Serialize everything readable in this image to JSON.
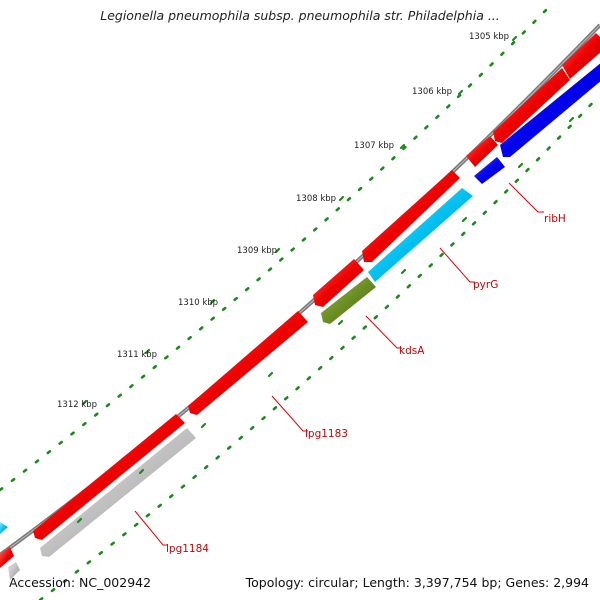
{
  "title": "Legionella pneumophila subsp. pneumophila str. Philadelphia ...",
  "accession": "Accession: NC_002942",
  "topology": "Topology: circular; Length: 3,397,754 bp; Genes: 2,994",
  "ticks": [
    "1305 kbp",
    "1306 kbp",
    "1307 kbp",
    "1308 kbp",
    "1309 kbp",
    "1310 kbp",
    "1311 kbp",
    "1312 kbp"
  ],
  "genes": [
    {
      "name": "ribH",
      "color": "#0000ee"
    },
    {
      "name": "pyrG",
      "color": "#00c0f0"
    },
    {
      "name": "kdsA",
      "color": "#6b8e23"
    },
    {
      "name": "lpg1183",
      "color": "#cc0000"
    },
    {
      "name": "lpg1184",
      "color": "#b8b8b8"
    }
  ],
  "colors": {
    "backbone": "#7a7a7a",
    "forward_strand": "#ee0000",
    "tick_dots": "#1a8a1a",
    "label_line": "#ee0000",
    "label_text": "#cc0000"
  }
}
